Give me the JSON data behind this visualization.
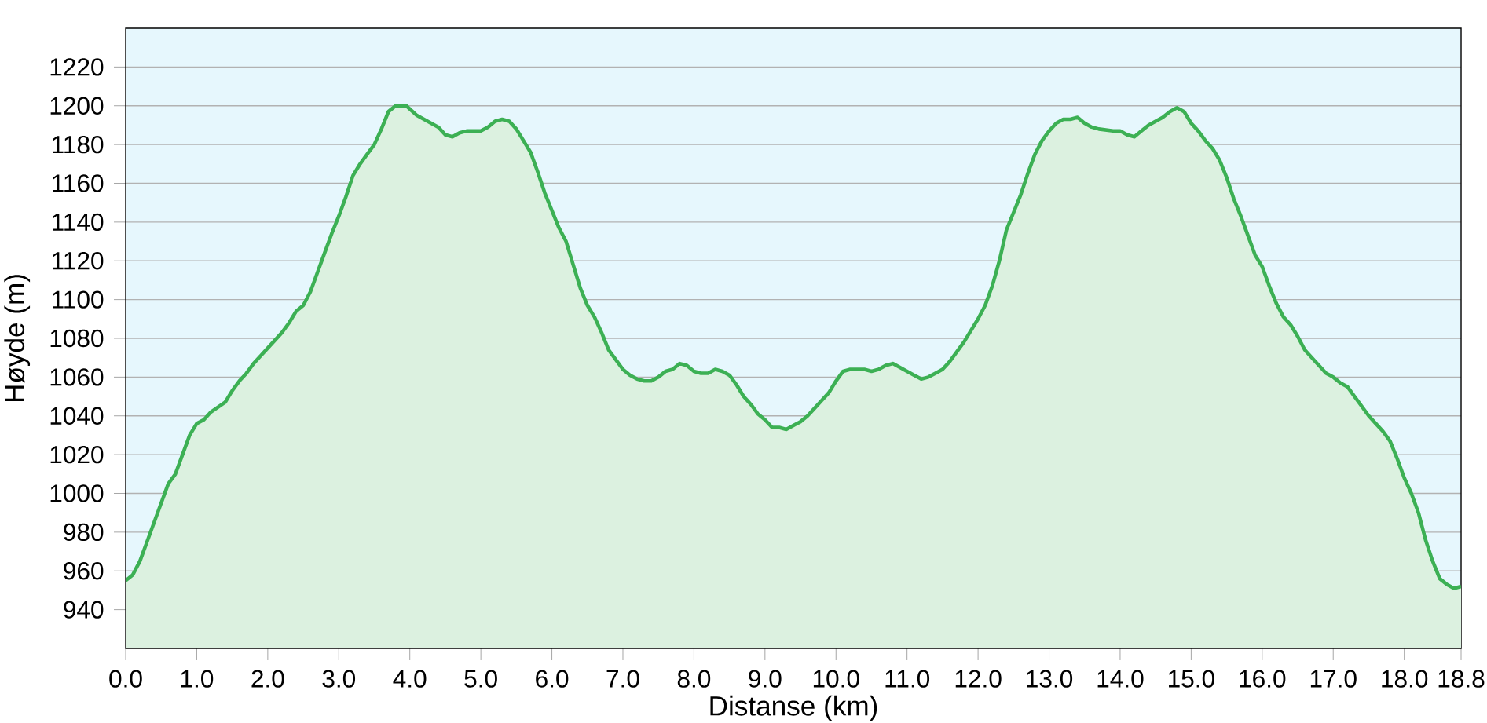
{
  "chart_data": {
    "type": "area",
    "xlabel": "Distanse  (km)",
    "ylabel": "Høyde (m)",
    "grid": "y",
    "marker": "none",
    "line_style": "solid",
    "xlim": [
      0,
      18.8
    ],
    "ylim": [
      920,
      1240
    ],
    "xticks": [
      {
        "value": 0,
        "label": "0.0"
      },
      {
        "value": 1,
        "label": "1.0"
      },
      {
        "value": 2,
        "label": "2.0"
      },
      {
        "value": 3,
        "label": "3.0"
      },
      {
        "value": 4,
        "label": "4.0"
      },
      {
        "value": 5,
        "label": "5.0"
      },
      {
        "value": 6,
        "label": "6.0"
      },
      {
        "value": 7,
        "label": "7.0"
      },
      {
        "value": 8,
        "label": "8.0"
      },
      {
        "value": 9,
        "label": "9.0"
      },
      {
        "value": 10,
        "label": "10.0"
      },
      {
        "value": 11,
        "label": "11.0"
      },
      {
        "value": 12,
        "label": "12.0"
      },
      {
        "value": 13,
        "label": "13.0"
      },
      {
        "value": 14,
        "label": "14.0"
      },
      {
        "value": 15,
        "label": "15.0"
      },
      {
        "value": 16,
        "label": "16.0"
      },
      {
        "value": 17,
        "label": "17.0"
      },
      {
        "value": 18,
        "label": "18.0"
      },
      18.8
    ],
    "yticks": [
      940,
      960,
      980,
      1000,
      1020,
      1040,
      1060,
      1080,
      1100,
      1120,
      1140,
      1160,
      1180,
      1200,
      1220
    ],
    "x": [
      0,
      0.1,
      0.2,
      0.3,
      0.4,
      0.5,
      0.6,
      0.7,
      0.8,
      0.9,
      1.0,
      1.1,
      1.2,
      1.4,
      1.5,
      1.6,
      1.7,
      1.8,
      1.9,
      2.0,
      2.2,
      2.3,
      2.4,
      2.5,
      2.6,
      2.7,
      2.8,
      2.9,
      3.0,
      3.1,
      3.2,
      3.3,
      3.4,
      3.5,
      3.6,
      3.7,
      3.8,
      3.95,
      4.1,
      4.3,
      4.4,
      4.5,
      4.6,
      4.7,
      4.8,
      5.0,
      5.1,
      5.2,
      5.3,
      5.4,
      5.5,
      5.6,
      5.7,
      5.8,
      5.9,
      6.0,
      6.1,
      6.2,
      6.3,
      6.4,
      6.5,
      6.6,
      6.7,
      6.8,
      6.9,
      7.0,
      7.1,
      7.2,
      7.3,
      7.4,
      7.5,
      7.6,
      7.7,
      7.8,
      7.9,
      8.0,
      8.1,
      8.2,
      8.3,
      8.4,
      8.5,
      8.6,
      8.7,
      8.8,
      8.9,
      9.0,
      9.1,
      9.2,
      9.3,
      9.4,
      9.5,
      9.6,
      9.7,
      9.8,
      9.9,
      10.0,
      10.1,
      10.2,
      10.4,
      10.5,
      10.6,
      10.7,
      10.8,
      10.9,
      11.0,
      11.1,
      11.2,
      11.3,
      11.4,
      11.5,
      11.6,
      11.7,
      11.8,
      11.9,
      12.0,
      12.1,
      12.2,
      12.3,
      12.4,
      12.5,
      12.6,
      12.7,
      12.8,
      12.9,
      13.0,
      13.1,
      13.2,
      13.3,
      13.4,
      13.5,
      13.6,
      13.7,
      13.9,
      14.0,
      14.1,
      14.2,
      14.3,
      14.4,
      14.5,
      14.6,
      14.7,
      14.8,
      14.9,
      15.0,
      15.1,
      15.2,
      15.3,
      15.4,
      15.5,
      15.6,
      15.7,
      15.8,
      15.9,
      16.0,
      16.1,
      16.2,
      16.3,
      16.4,
      16.5,
      16.6,
      16.7,
      16.8,
      16.9,
      17.0,
      17.1,
      17.2,
      17.3,
      17.4,
      17.5,
      17.6,
      17.7,
      17.8,
      17.9,
      18.0,
      18.1,
      18.2,
      18.3,
      18.4,
      18.5,
      18.6,
      18.7,
      18.8
    ],
    "series": [
      {
        "color": "#3cb054",
        "values": [
          955,
          958,
          965,
          975,
          985,
          995,
          1005,
          1010,
          1020,
          1030,
          1036,
          1038,
          1042,
          1047,
          1053,
          1058,
          1062,
          1067,
          1071,
          1075,
          1083,
          1088,
          1094,
          1097,
          1104,
          1114,
          1124,
          1134,
          1143,
          1153,
          1164,
          1170,
          1175,
          1180,
          1188,
          1197,
          1200,
          1200,
          1195,
          1191,
          1189,
          1185,
          1184,
          1186,
          1187,
          1187,
          1189,
          1192,
          1193,
          1192,
          1188,
          1182,
          1176,
          1166,
          1155,
          1146,
          1137,
          1130,
          1118,
          1106,
          1097,
          1091,
          1083,
          1074,
          1069,
          1064,
          1061,
          1059,
          1058,
          1058,
          1060,
          1063,
          1064,
          1067,
          1066,
          1063,
          1062,
          1062,
          1064,
          1063,
          1061,
          1056,
          1050,
          1046,
          1041,
          1038,
          1034,
          1034,
          1033,
          1035,
          1037,
          1040,
          1044,
          1048,
          1052,
          1058,
          1063,
          1064,
          1064,
          1063,
          1064,
          1066,
          1067,
          1065,
          1063,
          1061,
          1059,
          1060,
          1062,
          1064,
          1068,
          1073,
          1078,
          1084,
          1090,
          1097,
          1107,
          1120,
          1136,
          1145,
          1154,
          1165,
          1175,
          1182,
          1187,
          1191,
          1193,
          1193,
          1194,
          1191,
          1189,
          1188,
          1187,
          1187,
          1185,
          1184,
          1187,
          1190,
          1192,
          1194,
          1197,
          1199,
          1197,
          1191,
          1187,
          1182,
          1178,
          1172,
          1163,
          1152,
          1143,
          1133,
          1123,
          1117,
          1107,
          1098,
          1091,
          1087,
          1081,
          1074,
          1070,
          1066,
          1062,
          1060,
          1057,
          1055,
          1050,
          1045,
          1040,
          1036,
          1032,
          1027,
          1018,
          1008,
          1000,
          990,
          976,
          965,
          956,
          953,
          951,
          952
        ]
      }
    ]
  }
}
